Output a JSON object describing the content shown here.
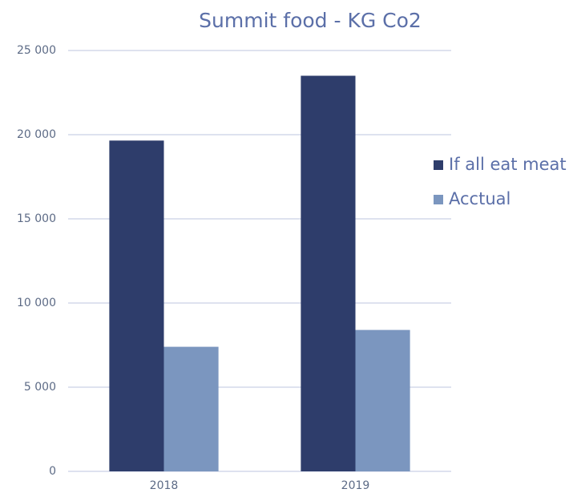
{
  "chart_data": {
    "type": "bar",
    "title": "Summit food - KG Co2",
    "categories": [
      "2018",
      "2019"
    ],
    "series": [
      {
        "name": "If all eat meat",
        "color": "#2e3d6b",
        "values": [
          19650,
          23500
        ]
      },
      {
        "name": "Acctual",
        "color": "#7b96bf",
        "values": [
          7400,
          8400
        ]
      }
    ],
    "ylim": [
      0,
      25000
    ],
    "yticks": [
      0,
      {
        "value": 5000,
        "label": "5 000"
      },
      {
        "value": 10000,
        "label": "10 000"
      },
      {
        "value": 15000,
        "label": "15 000"
      },
      {
        "value": 20000,
        "label": "20 000"
      },
      {
        "value": 25000,
        "label": "25 000"
      }
    ],
    "grid": true,
    "legend": "right"
  }
}
